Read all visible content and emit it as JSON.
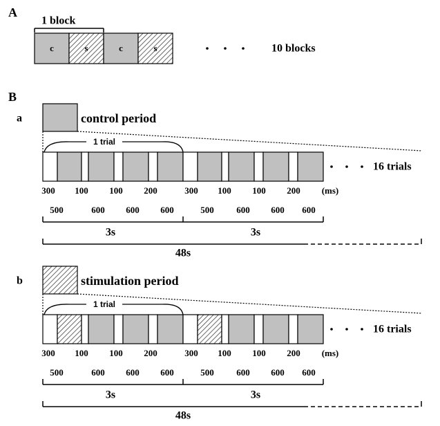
{
  "panel_a": {
    "label": "A",
    "block_label": "1 block",
    "blocks": [
      "c",
      "s",
      "c",
      "s"
    ],
    "count_label": "10 blocks"
  },
  "panel_b": {
    "label": "B",
    "subpanels": [
      {
        "label": "a",
        "period": "control period",
        "trial_label": "1 trial",
        "count_label": "16 trials",
        "onsets": [
          "300",
          "100",
          "100",
          "200",
          "300",
          "100",
          "100",
          "200"
        ],
        "unit": "(ms)",
        "durations": [
          "500",
          "600",
          "600",
          "600",
          "500",
          "600",
          "600",
          "600"
        ],
        "trial_times": [
          "3s",
          "3s"
        ],
        "total": "48s"
      },
      {
        "label": "b",
        "period": "stimulation period",
        "trial_label": "1 trial",
        "count_label": "16 trials",
        "onsets": [
          "300",
          "100",
          "100",
          "200",
          "300",
          "100",
          "100",
          "200"
        ],
        "unit": "(ms)",
        "durations": [
          "500",
          "600",
          "600",
          "600",
          "500",
          "600",
          "600",
          "600"
        ],
        "trial_times": [
          "3s",
          "3s"
        ],
        "total": "48s"
      }
    ]
  }
}
